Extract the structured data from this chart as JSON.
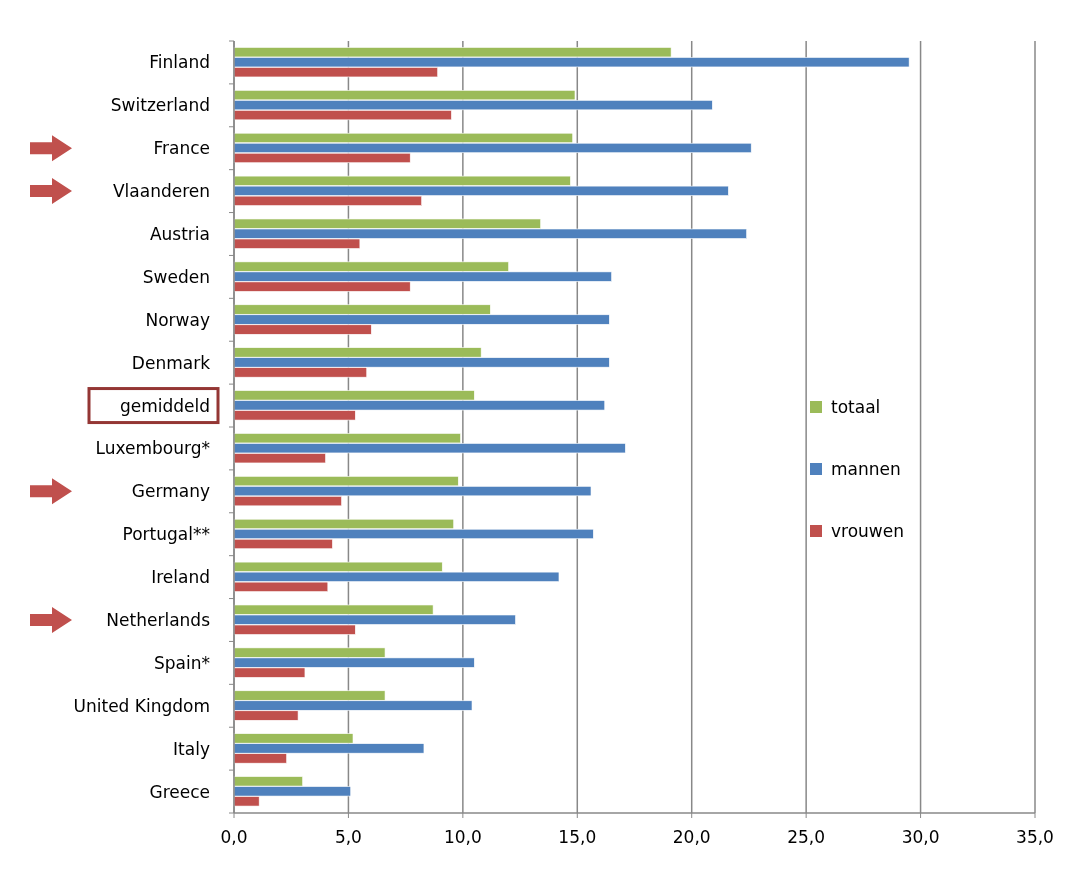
{
  "chart_data": {
    "type": "bar",
    "orientation": "horizontal",
    "categories": [
      "Finland",
      "Switzerland",
      "France",
      "Vlaanderen",
      "Austria",
      "Sweden",
      "Norway",
      "Denmark",
      "gemiddeld",
      "Luxembourg*",
      "Germany",
      "Portugal**",
      "Ireland",
      "Netherlands",
      "Spain*",
      "United Kingdom",
      "Italy",
      "Greece"
    ],
    "series": [
      {
        "name": "totaal",
        "color": "#9bbb59",
        "values": [
          19.1,
          14.9,
          14.8,
          14.7,
          13.4,
          12.0,
          11.2,
          10.8,
          10.5,
          9.9,
          9.8,
          9.6,
          9.1,
          8.7,
          6.6,
          6.6,
          5.2,
          3.0
        ]
      },
      {
        "name": "mannen",
        "color": "#4f81bd",
        "values": [
          29.5,
          20.9,
          22.6,
          21.6,
          22.4,
          16.5,
          16.4,
          16.4,
          16.2,
          17.1,
          15.6,
          15.7,
          14.2,
          12.3,
          10.5,
          10.4,
          8.3,
          5.1
        ]
      },
      {
        "name": "vrouwen",
        "color": "#c0504d",
        "values": [
          8.9,
          9.5,
          7.7,
          8.2,
          5.5,
          7.7,
          6.0,
          5.8,
          5.3,
          4.0,
          4.7,
          4.3,
          4.1,
          5.3,
          3.1,
          2.8,
          2.3,
          1.1
        ]
      }
    ],
    "xlim": [
      0,
      35
    ],
    "xticks": [
      {
        "value": 0,
        "label": "0,0"
      },
      {
        "value": 5,
        "label": "5,0"
      },
      {
        "value": 10,
        "label": "10,0"
      },
      {
        "value": 15,
        "label": "15,0"
      },
      {
        "value": 20,
        "label": "20,0"
      },
      {
        "value": 25,
        "label": "25,0"
      },
      {
        "value": 30,
        "label": "30,0"
      },
      {
        "value": 35,
        "label": "35,0"
      }
    ],
    "grid": "x",
    "legend": "right"
  }
}
